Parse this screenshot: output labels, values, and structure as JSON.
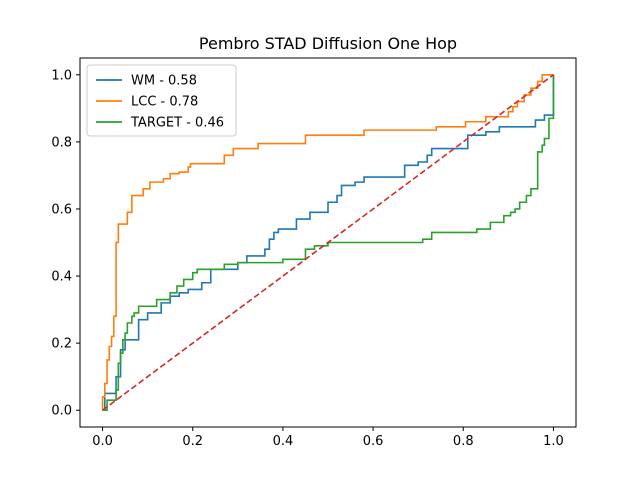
{
  "chart_data": {
    "type": "line",
    "title": "Pembro STAD Diffusion One Hop",
    "xlabel": "",
    "ylabel": "",
    "xlim": [
      -0.05,
      1.05
    ],
    "ylim": [
      -0.05,
      1.05
    ],
    "xticks": [
      0.0,
      0.2,
      0.4,
      0.6,
      0.8,
      1.0
    ],
    "xtick_labels": [
      "0.0",
      "0.2",
      "0.4",
      "0.6",
      "0.8",
      "1.0"
    ],
    "yticks": [
      0.0,
      0.2,
      0.4,
      0.6,
      0.8,
      1.0
    ],
    "ytick_labels": [
      "0.0",
      "0.2",
      "0.4",
      "0.6",
      "0.8",
      "1.0"
    ],
    "grid": false,
    "legend_placement": "upper-left",
    "series": [
      {
        "name": "WM - 0.58",
        "color": "#1f77b4",
        "points": [
          [
            0.0,
            0.0
          ],
          [
            0.005,
            0.0
          ],
          [
            0.005,
            0.05
          ],
          [
            0.03,
            0.05
          ],
          [
            0.03,
            0.1
          ],
          [
            0.04,
            0.1
          ],
          [
            0.04,
            0.18
          ],
          [
            0.05,
            0.18
          ],
          [
            0.05,
            0.21
          ],
          [
            0.08,
            0.21
          ],
          [
            0.08,
            0.27
          ],
          [
            0.1,
            0.27
          ],
          [
            0.1,
            0.29
          ],
          [
            0.13,
            0.29
          ],
          [
            0.13,
            0.32
          ],
          [
            0.15,
            0.32
          ],
          [
            0.15,
            0.34
          ],
          [
            0.17,
            0.34
          ],
          [
            0.17,
            0.35
          ],
          [
            0.19,
            0.35
          ],
          [
            0.19,
            0.36
          ],
          [
            0.22,
            0.36
          ],
          [
            0.22,
            0.38
          ],
          [
            0.24,
            0.38
          ],
          [
            0.24,
            0.42
          ],
          [
            0.3,
            0.42
          ],
          [
            0.3,
            0.44
          ],
          [
            0.32,
            0.44
          ],
          [
            0.32,
            0.46
          ],
          [
            0.36,
            0.46
          ],
          [
            0.36,
            0.48
          ],
          [
            0.37,
            0.48
          ],
          [
            0.37,
            0.51
          ],
          [
            0.38,
            0.51
          ],
          [
            0.38,
            0.53
          ],
          [
            0.39,
            0.53
          ],
          [
            0.39,
            0.54
          ],
          [
            0.43,
            0.54
          ],
          [
            0.43,
            0.57
          ],
          [
            0.46,
            0.57
          ],
          [
            0.46,
            0.59
          ],
          [
            0.5,
            0.59
          ],
          [
            0.5,
            0.62
          ],
          [
            0.52,
            0.62
          ],
          [
            0.52,
            0.64
          ],
          [
            0.53,
            0.64
          ],
          [
            0.53,
            0.67
          ],
          [
            0.56,
            0.67
          ],
          [
            0.56,
            0.68
          ],
          [
            0.58,
            0.68
          ],
          [
            0.58,
            0.695
          ],
          [
            0.67,
            0.695
          ],
          [
            0.67,
            0.73
          ],
          [
            0.7,
            0.73
          ],
          [
            0.7,
            0.74
          ],
          [
            0.72,
            0.74
          ],
          [
            0.72,
            0.76
          ],
          [
            0.73,
            0.76
          ],
          [
            0.73,
            0.78
          ],
          [
            0.81,
            0.78
          ],
          [
            0.81,
            0.82
          ],
          [
            0.85,
            0.82
          ],
          [
            0.85,
            0.83
          ],
          [
            0.88,
            0.83
          ],
          [
            0.88,
            0.845
          ],
          [
            0.96,
            0.845
          ],
          [
            0.96,
            0.865
          ],
          [
            0.98,
            0.865
          ],
          [
            0.98,
            0.88
          ],
          [
            1.0,
            0.88
          ],
          [
            1.0,
            1.0
          ]
        ]
      },
      {
        "name": "LCC - 0.78",
        "color": "#ff7f0e",
        "points": [
          [
            0.0,
            0.0
          ],
          [
            0.0,
            0.04
          ],
          [
            0.005,
            0.04
          ],
          [
            0.005,
            0.08
          ],
          [
            0.01,
            0.08
          ],
          [
            0.01,
            0.15
          ],
          [
            0.015,
            0.15
          ],
          [
            0.015,
            0.19
          ],
          [
            0.02,
            0.19
          ],
          [
            0.02,
            0.22
          ],
          [
            0.025,
            0.22
          ],
          [
            0.025,
            0.28
          ],
          [
            0.03,
            0.28
          ],
          [
            0.03,
            0.5
          ],
          [
            0.035,
            0.5
          ],
          [
            0.035,
            0.555
          ],
          [
            0.055,
            0.555
          ],
          [
            0.055,
            0.59
          ],
          [
            0.065,
            0.59
          ],
          [
            0.065,
            0.64
          ],
          [
            0.09,
            0.64
          ],
          [
            0.09,
            0.66
          ],
          [
            0.105,
            0.66
          ],
          [
            0.105,
            0.68
          ],
          [
            0.135,
            0.68
          ],
          [
            0.135,
            0.69
          ],
          [
            0.15,
            0.69
          ],
          [
            0.15,
            0.705
          ],
          [
            0.17,
            0.705
          ],
          [
            0.17,
            0.71
          ],
          [
            0.19,
            0.71
          ],
          [
            0.19,
            0.725
          ],
          [
            0.195,
            0.725
          ],
          [
            0.195,
            0.735
          ],
          [
            0.27,
            0.735
          ],
          [
            0.27,
            0.76
          ],
          [
            0.29,
            0.76
          ],
          [
            0.29,
            0.78
          ],
          [
            0.345,
            0.78
          ],
          [
            0.345,
            0.795
          ],
          [
            0.45,
            0.795
          ],
          [
            0.45,
            0.82
          ],
          [
            0.58,
            0.82
          ],
          [
            0.58,
            0.835
          ],
          [
            0.74,
            0.835
          ],
          [
            0.74,
            0.845
          ],
          [
            0.805,
            0.845
          ],
          [
            0.805,
            0.86
          ],
          [
            0.85,
            0.86
          ],
          [
            0.85,
            0.875
          ],
          [
            0.9,
            0.875
          ],
          [
            0.9,
            0.89
          ],
          [
            0.91,
            0.89
          ],
          [
            0.91,
            0.905
          ],
          [
            0.92,
            0.905
          ],
          [
            0.92,
            0.92
          ],
          [
            0.935,
            0.92
          ],
          [
            0.935,
            0.94
          ],
          [
            0.95,
            0.94
          ],
          [
            0.95,
            0.96
          ],
          [
            0.965,
            0.96
          ],
          [
            0.965,
            0.98
          ],
          [
            0.975,
            0.98
          ],
          [
            0.975,
            1.0
          ],
          [
            1.0,
            1.0
          ]
        ]
      },
      {
        "name": "TARGET - 0.46",
        "color": "#2ca02c",
        "points": [
          [
            0.0,
            0.0
          ],
          [
            0.01,
            0.0
          ],
          [
            0.01,
            0.03
          ],
          [
            0.03,
            0.03
          ],
          [
            0.03,
            0.06
          ],
          [
            0.035,
            0.06
          ],
          [
            0.035,
            0.14
          ],
          [
            0.04,
            0.14
          ],
          [
            0.04,
            0.17
          ],
          [
            0.045,
            0.17
          ],
          [
            0.045,
            0.21
          ],
          [
            0.05,
            0.21
          ],
          [
            0.05,
            0.23
          ],
          [
            0.055,
            0.23
          ],
          [
            0.055,
            0.26
          ],
          [
            0.065,
            0.26
          ],
          [
            0.065,
            0.28
          ],
          [
            0.07,
            0.28
          ],
          [
            0.07,
            0.29
          ],
          [
            0.08,
            0.29
          ],
          [
            0.08,
            0.31
          ],
          [
            0.12,
            0.31
          ],
          [
            0.12,
            0.33
          ],
          [
            0.15,
            0.33
          ],
          [
            0.15,
            0.35
          ],
          [
            0.165,
            0.35
          ],
          [
            0.165,
            0.37
          ],
          [
            0.18,
            0.37
          ],
          [
            0.18,
            0.39
          ],
          [
            0.2,
            0.39
          ],
          [
            0.2,
            0.41
          ],
          [
            0.21,
            0.41
          ],
          [
            0.21,
            0.42
          ],
          [
            0.27,
            0.42
          ],
          [
            0.27,
            0.435
          ],
          [
            0.3,
            0.435
          ],
          [
            0.3,
            0.44
          ],
          [
            0.4,
            0.44
          ],
          [
            0.4,
            0.45
          ],
          [
            0.45,
            0.45
          ],
          [
            0.45,
            0.48
          ],
          [
            0.47,
            0.48
          ],
          [
            0.47,
            0.49
          ],
          [
            0.5,
            0.49
          ],
          [
            0.5,
            0.5
          ],
          [
            0.71,
            0.5
          ],
          [
            0.71,
            0.51
          ],
          [
            0.73,
            0.51
          ],
          [
            0.73,
            0.53
          ],
          [
            0.83,
            0.53
          ],
          [
            0.83,
            0.54
          ],
          [
            0.86,
            0.54
          ],
          [
            0.86,
            0.56
          ],
          [
            0.89,
            0.56
          ],
          [
            0.89,
            0.58
          ],
          [
            0.905,
            0.58
          ],
          [
            0.905,
            0.59
          ],
          [
            0.915,
            0.59
          ],
          [
            0.915,
            0.6
          ],
          [
            0.925,
            0.6
          ],
          [
            0.925,
            0.62
          ],
          [
            0.94,
            0.62
          ],
          [
            0.94,
            0.64
          ],
          [
            0.95,
            0.64
          ],
          [
            0.95,
            0.66
          ],
          [
            0.965,
            0.66
          ],
          [
            0.965,
            0.77
          ],
          [
            0.975,
            0.77
          ],
          [
            0.975,
            0.79
          ],
          [
            0.98,
            0.79
          ],
          [
            0.98,
            0.81
          ],
          [
            0.99,
            0.81
          ],
          [
            0.99,
            0.87
          ],
          [
            1.0,
            0.87
          ],
          [
            1.0,
            1.0
          ]
        ]
      },
      {
        "name": "",
        "color": "#d62728",
        "dashed": true,
        "points": [
          [
            0.0,
            0.0
          ],
          [
            1.0,
            1.0
          ]
        ]
      }
    ]
  }
}
